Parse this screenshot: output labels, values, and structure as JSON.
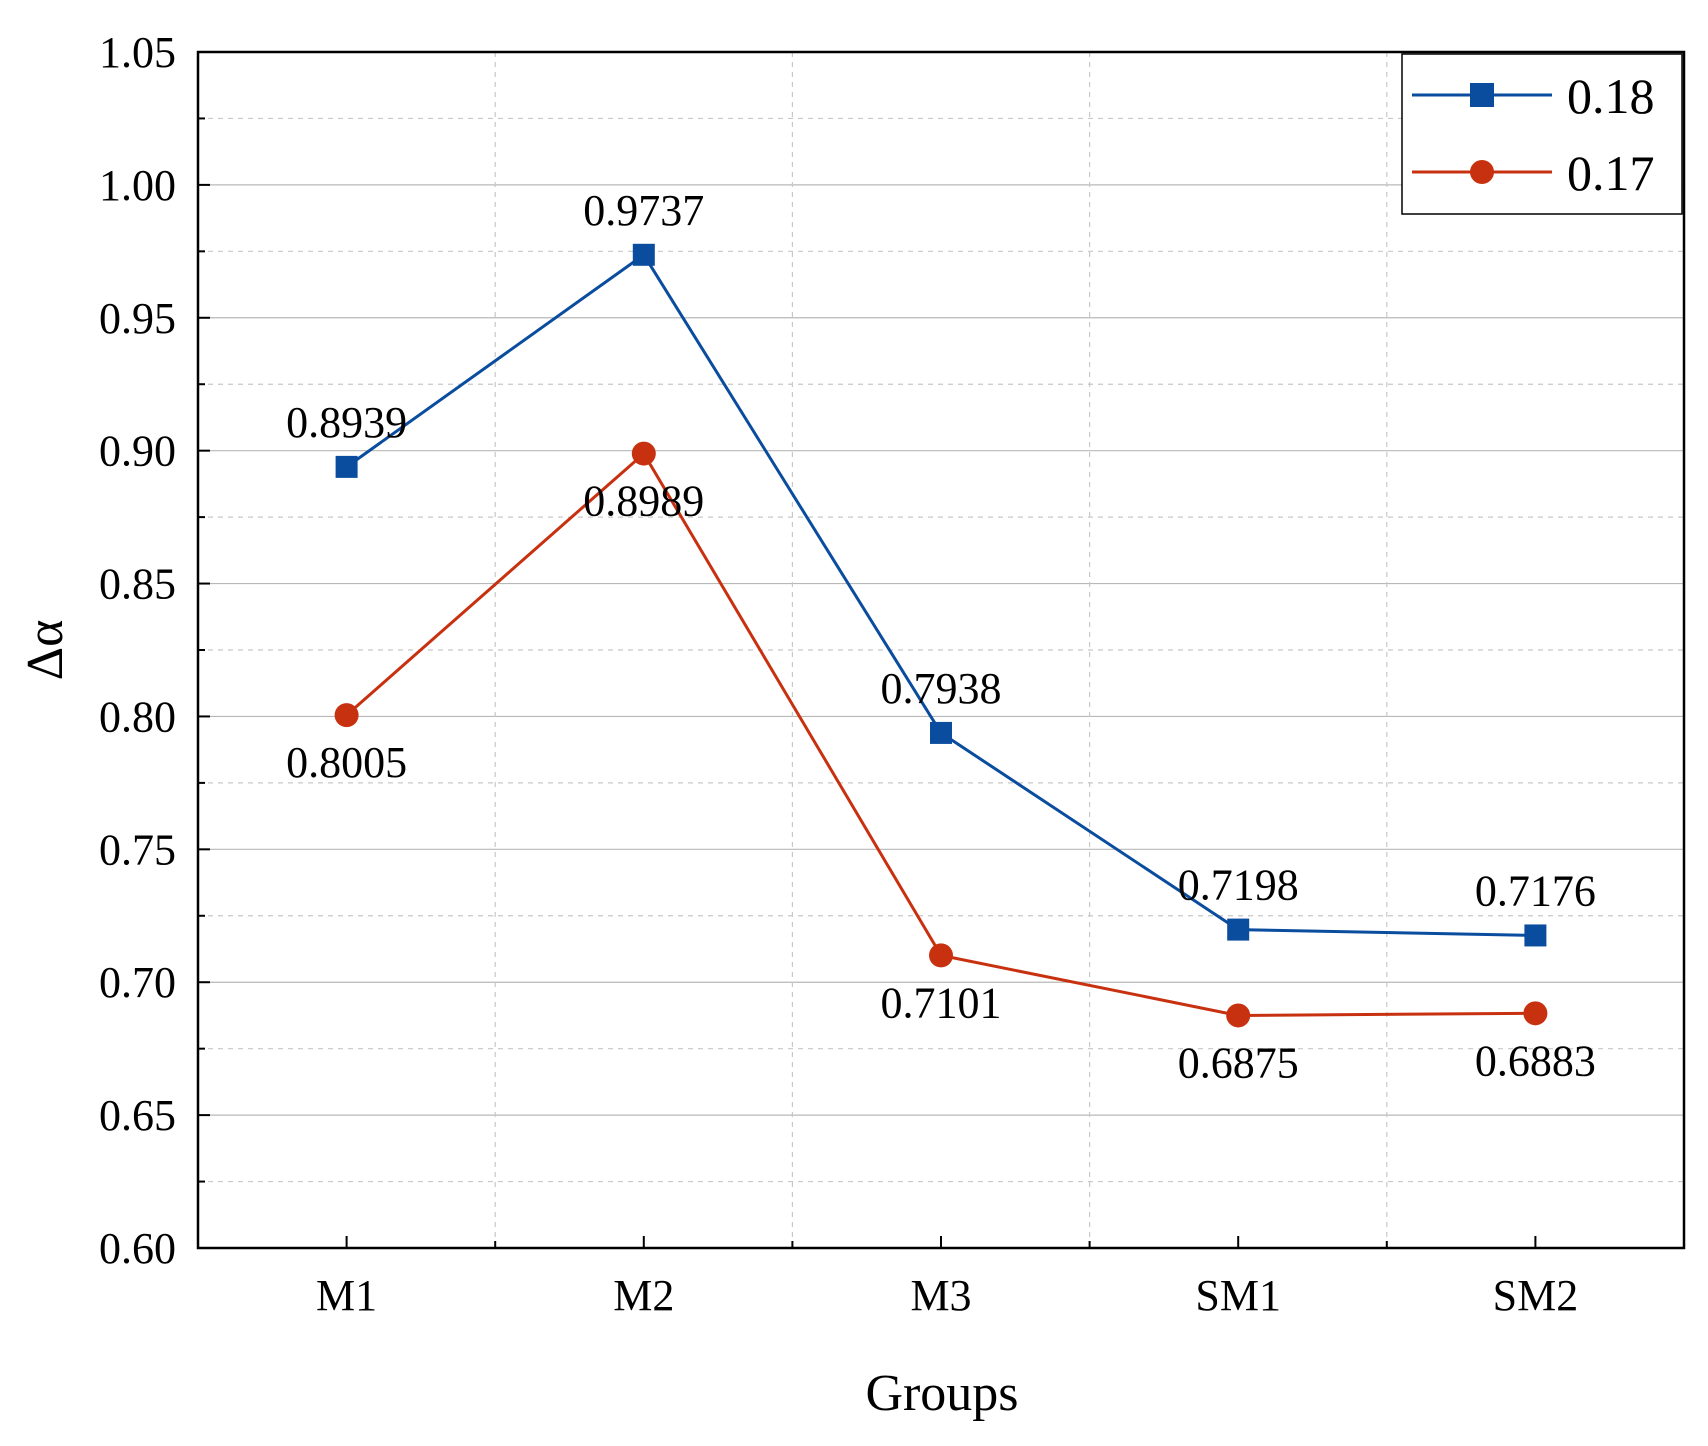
{
  "chart_data": {
    "type": "line",
    "title": "",
    "xlabel": "Groups",
    "ylabel": "Δα",
    "categories": [
      "M1",
      "M2",
      "M3",
      "SM1",
      "SM2"
    ],
    "ylim": [
      0.6,
      1.05
    ],
    "yticks": [
      "0.60",
      "0.65",
      "0.70",
      "0.75",
      "0.80",
      "0.85",
      "0.90",
      "0.95",
      "1.00",
      "1.05"
    ],
    "grid": true,
    "legend_position": "top-right",
    "series": [
      {
        "name": "0.18",
        "color": "#0a4c9e",
        "marker": "square",
        "values": [
          0.8939,
          0.9737,
          0.7938,
          0.7198,
          0.7176
        ],
        "labels": [
          "0.8939",
          "0.9737",
          "0.7938",
          "0.7198",
          "0.7176"
        ],
        "label_side": [
          "above",
          "above",
          "above",
          "above",
          "above"
        ]
      },
      {
        "name": "0.17",
        "color": "#c8310f",
        "marker": "circle",
        "values": [
          0.8005,
          0.8989,
          0.7101,
          0.6875,
          0.6883
        ],
        "labels": [
          "0.8005",
          "0.8989",
          "0.7101",
          "0.6875",
          "0.6883"
        ],
        "label_side": [
          "below",
          "below",
          "below",
          "below",
          "below"
        ]
      }
    ]
  }
}
